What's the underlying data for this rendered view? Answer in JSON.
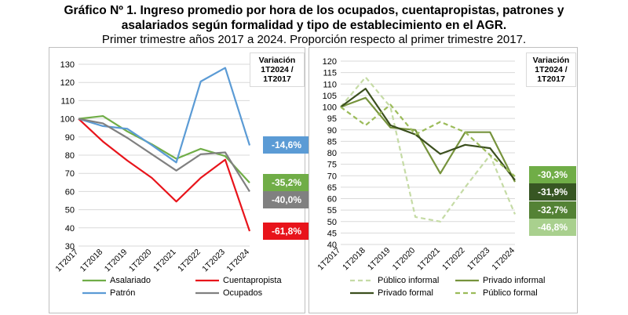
{
  "header": {
    "title_line1": "Gráfico Nº 1. Ingreso promedio por hora de los ocupados, cuentapropistas, patrones y",
    "title_line2": "asalariados según formalidad y tipo de establecimiento en el AGR.",
    "subtitle": "Primer trimestre años 2017 a 2024. Proporción respecto al primer trimestre 2017."
  },
  "chart_data": [
    {
      "type": "line",
      "categories": [
        "1T2017",
        "1T2018",
        "1T2019",
        "1T2020",
        "1T2021",
        "1T2022",
        "1T2023",
        "1T2024"
      ],
      "ylim": [
        30,
        130
      ],
      "yticks": [
        30,
        40,
        50,
        60,
        70,
        80,
        90,
        100,
        110,
        120,
        130
      ],
      "grid": true,
      "variation_box": {
        "line1": "Variación",
        "line2": "1T2024 /",
        "line3": "1T2017"
      },
      "series": [
        {
          "name": "Asalariado",
          "color": "#70ad47",
          "dash": "",
          "values": [
            100,
            101.5,
            93,
            86,
            78,
            83.5,
            79.5,
            64.8
          ]
        },
        {
          "name": "Cuentapropista",
          "color": "#e8141b",
          "dash": "",
          "values": [
            100,
            87.5,
            77,
            67.5,
            54.5,
            67.5,
            77.5,
            38.2
          ]
        },
        {
          "name": "Patrón",
          "color": "#5b9bd5",
          "dash": "",
          "values": [
            100,
            96,
            94.5,
            85.5,
            76,
            120.5,
            128,
            85.4
          ]
        },
        {
          "name": "Ocupados",
          "color": "#808080",
          "dash": "",
          "values": [
            100,
            97.5,
            89.5,
            80.5,
            71.5,
            80.5,
            81.5,
            60.0
          ]
        }
      ],
      "badges": [
        {
          "label": "-14,6%",
          "color": "#5b9bd5",
          "value": 85.4
        },
        {
          "label": "-35,2%",
          "color": "#70ad47",
          "value": 64.8
        },
        {
          "label": "-40,0%",
          "color": "#808080",
          "value": 55.5
        },
        {
          "label": "-61,8%",
          "color": "#e8141b",
          "value": 38.2
        }
      ]
    },
    {
      "type": "line",
      "categories": [
        "1T2017",
        "1T2018",
        "1T2019",
        "1T2020",
        "1T2021",
        "1T2022",
        "1T2023",
        "1T2024"
      ],
      "ylim": [
        40,
        120
      ],
      "yticks": [
        40,
        45,
        50,
        55,
        60,
        65,
        70,
        75,
        80,
        85,
        90,
        95,
        100,
        105,
        110,
        115,
        120
      ],
      "grid": true,
      "variation_box": {
        "line1": "Variación",
        "line2": "1T2024 /",
        "line3": "1T2017"
      },
      "series": [
        {
          "name": "Público informal",
          "color": "#c5dba5",
          "dash": "6,4",
          "values": [
            100,
            113,
            100,
            52,
            50,
            65,
            79,
            53.2
          ]
        },
        {
          "name": "Privado informal",
          "color": "#76933c",
          "dash": "",
          "values": [
            100,
            104,
            91,
            90,
            71,
            89,
            89,
            67.3
          ]
        },
        {
          "name": "Privado formal",
          "color": "#3b4f1e",
          "dash": "",
          "values": [
            100,
            108,
            92,
            88,
            79.5,
            83.5,
            82,
            68.1
          ]
        },
        {
          "name": "Público formal",
          "color": "#9bbb59",
          "dash": "6,4",
          "values": [
            100,
            92,
            101,
            88,
            93.5,
            89,
            79,
            69.7
          ]
        }
      ],
      "badges": [
        {
          "label": "-30,3%",
          "color": "#70ad47",
          "value": 70.4
        },
        {
          "label": "-31,9%",
          "color": "#375623",
          "value": 62.8
        },
        {
          "label": "-32,7%",
          "color": "#548235",
          "value": 55.2
        },
        {
          "label": "-46,8%",
          "color": "#a9d08e",
          "value": 47.6
        }
      ]
    }
  ]
}
